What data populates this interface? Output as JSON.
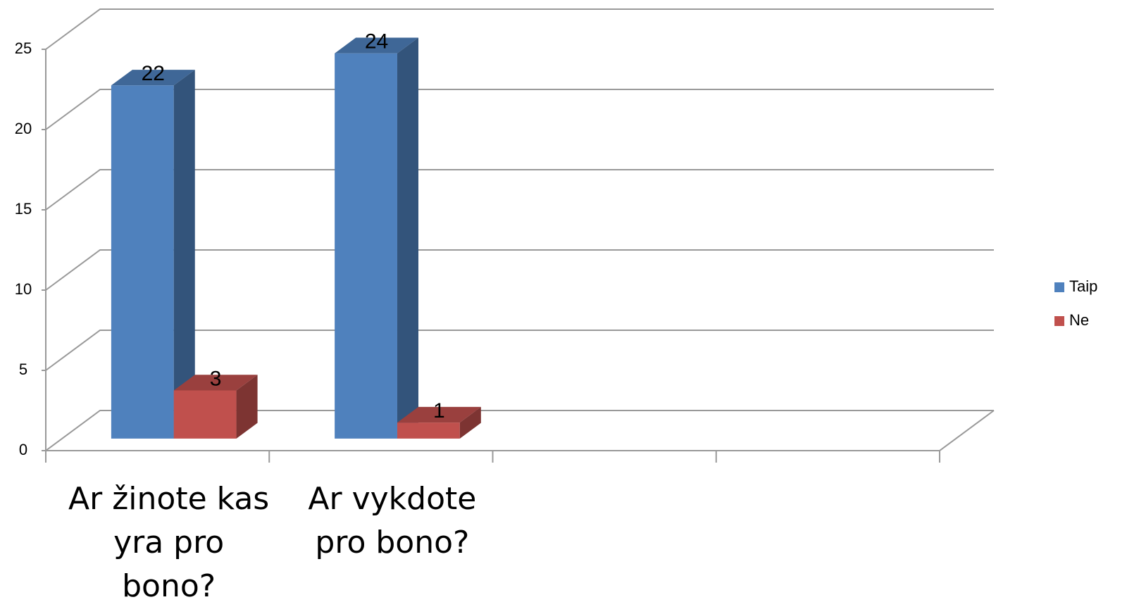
{
  "chart_data": {
    "type": "bar3d",
    "categories": [
      "Ar žinote kas yra pro bono?",
      "Ar vykdote pro bono?",
      null,
      null
    ],
    "series": [
      {
        "name": "Taip",
        "color": "#4f81bd",
        "values": [
          22,
          24,
          null,
          null
        ]
      },
      {
        "name": "Ne",
        "color": "#c0504d",
        "values": [
          3,
          1,
          null,
          null
        ]
      }
    ],
    "ylim": [
      0,
      25
    ],
    "yticks": [
      0,
      5,
      10,
      15,
      20,
      25
    ],
    "grid": true,
    "legend": "right"
  }
}
